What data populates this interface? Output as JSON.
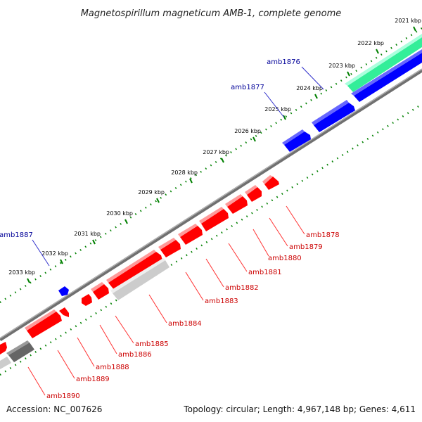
{
  "title": "Magnetospirillum magneticum AMB-1, complete genome",
  "accession": "Accession: NC_007626",
  "summary": "Topology: circular; Length: 4,967,148 bp; Genes: 4,611",
  "colors": {
    "forward": "#0000ff",
    "reverse": "#ff0000",
    "backbone": "#808080",
    "ticks": "#008000",
    "green_feature": "#33ee99",
    "light_feature": "#cccccc",
    "dark_feature": "#666666"
  },
  "ticks": [
    {
      "label": "2021 kbp"
    },
    {
      "label": "2022 kbp"
    },
    {
      "label": "2023 kbp"
    },
    {
      "label": "2024 kbp"
    },
    {
      "label": "2025 kbp"
    },
    {
      "label": "2026 kbp"
    },
    {
      "label": "2027 kbp"
    },
    {
      "label": "2028 kbp"
    },
    {
      "label": "2029 kbp"
    },
    {
      "label": "2030 kbp"
    },
    {
      "label": "2031 kbp"
    },
    {
      "label": "2032 kbp"
    },
    {
      "label": "2033 kbp"
    }
  ],
  "gene_labels": [
    {
      "name": "amb1876",
      "strand": "forward"
    },
    {
      "name": "amb1877",
      "strand": "forward"
    },
    {
      "name": "amb1887",
      "strand": "forward"
    },
    {
      "name": "amb1878",
      "strand": "reverse"
    },
    {
      "name": "amb1879",
      "strand": "reverse"
    },
    {
      "name": "amb1880",
      "strand": "reverse"
    },
    {
      "name": "amb1881",
      "strand": "reverse"
    },
    {
      "name": "amb1882",
      "strand": "reverse"
    },
    {
      "name": "amb1883",
      "strand": "reverse"
    },
    {
      "name": "amb1884",
      "strand": "reverse"
    },
    {
      "name": "amb1885",
      "strand": "reverse"
    },
    {
      "name": "amb1886",
      "strand": "reverse"
    },
    {
      "name": "amb1888",
      "strand": "reverse"
    },
    {
      "name": "amb1889",
      "strand": "reverse"
    },
    {
      "name": "amb1890",
      "strand": "reverse"
    }
  ]
}
